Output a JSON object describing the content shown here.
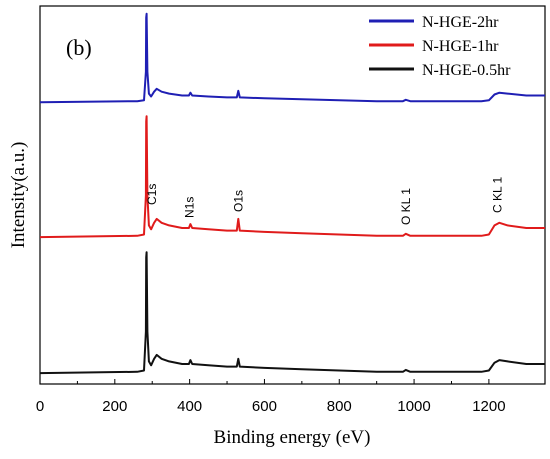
{
  "chart_data": {
    "type": "line",
    "panel_label": "(b)",
    "xlabel": "Binding energy (eV)",
    "ylabel": "Intensity(a.u.)",
    "xlim": [
      0,
      1350
    ],
    "x_ticks": [
      0,
      200,
      400,
      600,
      800,
      1000,
      1200
    ],
    "y_tick_labels_shown": false,
    "legend_position": "top-right",
    "series": [
      {
        "name": "N-HGE-2hr",
        "color": "#1f1fb4",
        "stack": "top",
        "points": [
          [
            0,
            0.03
          ],
          [
            260,
            0.04
          ],
          [
            278,
            0.05
          ],
          [
            283,
            0.35
          ],
          [
            284,
            0.92
          ],
          [
            285,
            0.96
          ],
          [
            287,
            0.35
          ],
          [
            291,
            0.12
          ],
          [
            297,
            0.09
          ],
          [
            305,
            0.14
          ],
          [
            312,
            0.17
          ],
          [
            325,
            0.14
          ],
          [
            345,
            0.12
          ],
          [
            380,
            0.1
          ],
          [
            398,
            0.1
          ],
          [
            402,
            0.13
          ],
          [
            407,
            0.1
          ],
          [
            450,
            0.09
          ],
          [
            500,
            0.08
          ],
          [
            526,
            0.08
          ],
          [
            530,
            0.15
          ],
          [
            534,
            0.08
          ],
          [
            600,
            0.07
          ],
          [
            700,
            0.06
          ],
          [
            800,
            0.05
          ],
          [
            900,
            0.04
          ],
          [
            970,
            0.04
          ],
          [
            978,
            0.055
          ],
          [
            990,
            0.04
          ],
          [
            1100,
            0.04
          ],
          [
            1180,
            0.04
          ],
          [
            1200,
            0.05
          ],
          [
            1215,
            0.11
          ],
          [
            1228,
            0.13
          ],
          [
            1250,
            0.12
          ],
          [
            1300,
            0.1
          ],
          [
            1350,
            0.1
          ]
        ]
      },
      {
        "name": "N-HGE-1hr",
        "color": "#e01b1b",
        "stack": "middle",
        "points": [
          [
            0,
            0.03
          ],
          [
            260,
            0.04
          ],
          [
            278,
            0.05
          ],
          [
            283,
            0.35
          ],
          [
            284,
            0.92
          ],
          [
            285,
            0.96
          ],
          [
            287,
            0.35
          ],
          [
            291,
            0.12
          ],
          [
            297,
            0.09
          ],
          [
            305,
            0.14
          ],
          [
            312,
            0.17
          ],
          [
            325,
            0.14
          ],
          [
            345,
            0.12
          ],
          [
            380,
            0.1
          ],
          [
            398,
            0.1
          ],
          [
            402,
            0.13
          ],
          [
            407,
            0.1
          ],
          [
            450,
            0.09
          ],
          [
            500,
            0.08
          ],
          [
            526,
            0.08
          ],
          [
            530,
            0.17
          ],
          [
            534,
            0.08
          ],
          [
            600,
            0.07
          ],
          [
            700,
            0.06
          ],
          [
            800,
            0.05
          ],
          [
            900,
            0.04
          ],
          [
            970,
            0.04
          ],
          [
            978,
            0.055
          ],
          [
            990,
            0.04
          ],
          [
            1100,
            0.04
          ],
          [
            1180,
            0.04
          ],
          [
            1200,
            0.05
          ],
          [
            1215,
            0.12
          ],
          [
            1228,
            0.14
          ],
          [
            1250,
            0.12
          ],
          [
            1300,
            0.1
          ],
          [
            1350,
            0.1
          ]
        ]
      },
      {
        "name": "N-HGE-0.5hr",
        "color": "#111111",
        "stack": "bottom",
        "points": [
          [
            0,
            0.03
          ],
          [
            260,
            0.04
          ],
          [
            278,
            0.05
          ],
          [
            283,
            0.35
          ],
          [
            284,
            0.92
          ],
          [
            285,
            0.96
          ],
          [
            287,
            0.35
          ],
          [
            291,
            0.12
          ],
          [
            297,
            0.09
          ],
          [
            305,
            0.14
          ],
          [
            312,
            0.17
          ],
          [
            325,
            0.14
          ],
          [
            345,
            0.12
          ],
          [
            380,
            0.1
          ],
          [
            398,
            0.1
          ],
          [
            402,
            0.13
          ],
          [
            407,
            0.1
          ],
          [
            450,
            0.09
          ],
          [
            500,
            0.08
          ],
          [
            526,
            0.08
          ],
          [
            530,
            0.14
          ],
          [
            534,
            0.08
          ],
          [
            600,
            0.07
          ],
          [
            700,
            0.06
          ],
          [
            800,
            0.05
          ],
          [
            900,
            0.04
          ],
          [
            970,
            0.04
          ],
          [
            978,
            0.055
          ],
          [
            990,
            0.04
          ],
          [
            1100,
            0.04
          ],
          [
            1180,
            0.04
          ],
          [
            1200,
            0.05
          ],
          [
            1215,
            0.11
          ],
          [
            1228,
            0.13
          ],
          [
            1250,
            0.12
          ],
          [
            1300,
            0.1
          ],
          [
            1350,
            0.1
          ]
        ]
      }
    ],
    "annotations": [
      {
        "text": "C1s",
        "x": 300
      },
      {
        "text": "N1s",
        "x": 400
      },
      {
        "text": "O1s",
        "x": 530
      },
      {
        "text": "O KL 1",
        "x": 978
      },
      {
        "text": "C KL 1",
        "x": 1223
      }
    ]
  }
}
